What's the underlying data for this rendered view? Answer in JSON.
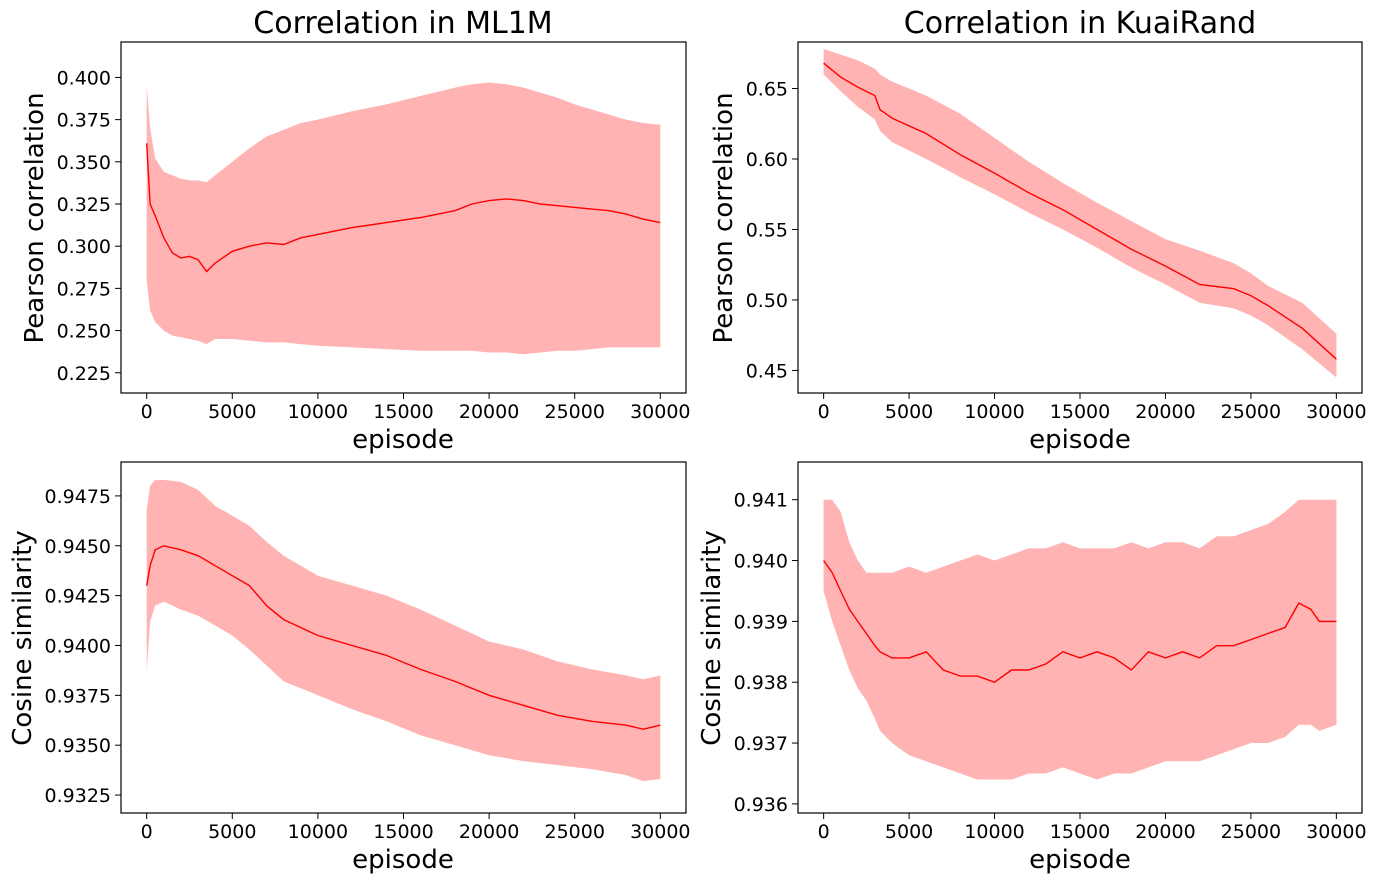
{
  "colors": {
    "line": "#ff0000",
    "band": "#ffb3b3"
  },
  "chart_data": [
    {
      "type": "line",
      "title": "Correlation in ML1M",
      "xlabel": "episode",
      "ylabel": "Pearson correlation",
      "xlim": [
        -1500,
        31500
      ],
      "ylim": [
        0.213,
        0.421
      ],
      "xticks": [
        0,
        5000,
        10000,
        15000,
        20000,
        25000,
        30000
      ],
      "yticks": [
        0.225,
        0.25,
        0.275,
        0.3,
        0.325,
        0.35,
        0.375,
        0.4
      ],
      "xtick_labels": [
        "0",
        "5000",
        "10000",
        "15000",
        "20000",
        "25000",
        "30000"
      ],
      "ytick_labels": [
        "0.225",
        "0.250",
        "0.275",
        "0.300",
        "0.325",
        "0.350",
        "0.375",
        "0.400"
      ],
      "series": [
        {
          "name": "mean",
          "x": [
            0,
            200,
            500,
            1000,
            1500,
            2000,
            2500,
            3000,
            3500,
            4000,
            5000,
            6000,
            7000,
            8000,
            9000,
            10000,
            12000,
            14000,
            16000,
            18000,
            19000,
            20000,
            21000,
            22000,
            23000,
            24000,
            25000,
            26000,
            27000,
            28000,
            29000,
            30000
          ],
          "y": [
            0.361,
            0.325,
            0.318,
            0.305,
            0.296,
            0.293,
            0.294,
            0.292,
            0.285,
            0.29,
            0.297,
            0.3,
            0.302,
            0.301,
            0.305,
            0.307,
            0.311,
            0.314,
            0.317,
            0.321,
            0.325,
            0.327,
            0.328,
            0.327,
            0.325,
            0.324,
            0.323,
            0.322,
            0.321,
            0.319,
            0.316,
            0.314
          ],
          "lower": [
            0.28,
            0.262,
            0.255,
            0.25,
            0.247,
            0.246,
            0.245,
            0.244,
            0.242,
            0.245,
            0.245,
            0.244,
            0.243,
            0.243,
            0.242,
            0.241,
            0.24,
            0.239,
            0.238,
            0.238,
            0.238,
            0.237,
            0.237,
            0.236,
            0.237,
            0.238,
            0.238,
            0.239,
            0.24,
            0.24,
            0.24,
            0.24
          ],
          "upper": [
            0.395,
            0.37,
            0.352,
            0.344,
            0.342,
            0.34,
            0.339,
            0.339,
            0.338,
            0.342,
            0.35,
            0.358,
            0.365,
            0.369,
            0.373,
            0.375,
            0.38,
            0.384,
            0.389,
            0.394,
            0.396,
            0.397,
            0.396,
            0.394,
            0.391,
            0.388,
            0.384,
            0.381,
            0.378,
            0.375,
            0.373,
            0.372
          ]
        }
      ]
    },
    {
      "type": "line",
      "title": "Correlation in KuaiRand",
      "xlabel": "episode",
      "ylabel": "Pearson correlation",
      "xlim": [
        -1500,
        31500
      ],
      "ylim": [
        0.434,
        0.683
      ],
      "xticks": [
        0,
        5000,
        10000,
        15000,
        20000,
        25000,
        30000
      ],
      "yticks": [
        0.45,
        0.5,
        0.55,
        0.6,
        0.65
      ],
      "xtick_labels": [
        "0",
        "5000",
        "10000",
        "15000",
        "20000",
        "25000",
        "30000"
      ],
      "ytick_labels": [
        "0.45",
        "0.50",
        "0.55",
        "0.60",
        "0.65"
      ],
      "series": [
        {
          "name": "mean",
          "x": [
            0,
            1000,
            2000,
            3000,
            3300,
            4000,
            6000,
            8000,
            10000,
            12000,
            14000,
            16000,
            18000,
            20000,
            22000,
            24000,
            25000,
            26000,
            28000,
            30000
          ],
          "y": [
            0.668,
            0.658,
            0.651,
            0.645,
            0.635,
            0.629,
            0.618,
            0.603,
            0.59,
            0.576,
            0.564,
            0.55,
            0.536,
            0.524,
            0.511,
            0.508,
            0.503,
            0.496,
            0.48,
            0.458
          ],
          "lower": [
            0.66,
            0.648,
            0.637,
            0.628,
            0.62,
            0.612,
            0.6,
            0.587,
            0.575,
            0.562,
            0.55,
            0.537,
            0.523,
            0.511,
            0.498,
            0.494,
            0.489,
            0.482,
            0.465,
            0.445
          ],
          "upper": [
            0.678,
            0.674,
            0.67,
            0.664,
            0.66,
            0.655,
            0.645,
            0.632,
            0.615,
            0.598,
            0.583,
            0.569,
            0.556,
            0.543,
            0.535,
            0.526,
            0.519,
            0.51,
            0.498,
            0.476
          ]
        }
      ]
    },
    {
      "type": "line",
      "title": "",
      "xlabel": "episode",
      "ylabel": "Cosine similarity",
      "xlim": [
        -1500,
        31500
      ],
      "ylim": [
        0.9316,
        0.9492
      ],
      "xticks": [
        0,
        5000,
        10000,
        15000,
        20000,
        25000,
        30000
      ],
      "yticks": [
        0.9325,
        0.935,
        0.9375,
        0.94,
        0.9425,
        0.945,
        0.9475
      ],
      "xtick_labels": [
        "0",
        "5000",
        "10000",
        "15000",
        "20000",
        "25000",
        "30000"
      ],
      "ytick_labels": [
        "0.9325",
        "0.9350",
        "0.9375",
        "0.9400",
        "0.9425",
        "0.9450",
        "0.9475"
      ],
      "series": [
        {
          "name": "mean",
          "x": [
            0,
            200,
            500,
            1000,
            2000,
            3000,
            4000,
            5000,
            6000,
            7000,
            8000,
            10000,
            12000,
            14000,
            16000,
            18000,
            20000,
            22000,
            24000,
            26000,
            28000,
            29000,
            30000
          ],
          "y": [
            0.943,
            0.944,
            0.9448,
            0.945,
            0.9448,
            0.9445,
            0.944,
            0.9435,
            0.943,
            0.942,
            0.9413,
            0.9405,
            0.94,
            0.9395,
            0.9388,
            0.9382,
            0.9375,
            0.937,
            0.9365,
            0.9362,
            0.936,
            0.9358,
            0.936
          ],
          "lower": [
            0.9387,
            0.9412,
            0.942,
            0.9422,
            0.9418,
            0.9415,
            0.941,
            0.9405,
            0.9398,
            0.939,
            0.9382,
            0.9375,
            0.9368,
            0.9362,
            0.9355,
            0.935,
            0.9345,
            0.9342,
            0.934,
            0.9338,
            0.9335,
            0.9332,
            0.9333
          ],
          "upper": [
            0.9468,
            0.948,
            0.9483,
            0.9483,
            0.9482,
            0.9478,
            0.947,
            0.9465,
            0.946,
            0.9452,
            0.9445,
            0.9435,
            0.943,
            0.9425,
            0.9418,
            0.941,
            0.9402,
            0.9398,
            0.9392,
            0.9388,
            0.9385,
            0.9383,
            0.9385
          ]
        }
      ]
    },
    {
      "type": "line",
      "title": "",
      "xlabel": "episode",
      "ylabel": "Cosine similarity",
      "xlim": [
        -1500,
        31500
      ],
      "ylim": [
        0.93585,
        0.94162
      ],
      "xticks": [
        0,
        5000,
        10000,
        15000,
        20000,
        25000,
        30000
      ],
      "yticks": [
        0.936,
        0.937,
        0.938,
        0.939,
        0.94,
        0.941
      ],
      "xtick_labels": [
        "0",
        "5000",
        "10000",
        "15000",
        "20000",
        "25000",
        "30000"
      ],
      "ytick_labels": [
        "0.936",
        "0.937",
        "0.938",
        "0.939",
        "0.940",
        "0.941"
      ],
      "series": [
        {
          "name": "mean",
          "x": [
            0,
            500,
            1000,
            1500,
            2000,
            2500,
            3000,
            3300,
            4000,
            5000,
            6000,
            7000,
            8000,
            9000,
            10000,
            11000,
            12000,
            13000,
            14000,
            15000,
            16000,
            17000,
            18000,
            19000,
            20000,
            21000,
            22000,
            23000,
            24000,
            25000,
            26000,
            27000,
            27800,
            28500,
            29000,
            30000
          ],
          "y": [
            0.94,
            0.9398,
            0.9395,
            0.9392,
            0.939,
            0.9388,
            0.9386,
            0.9385,
            0.9384,
            0.9384,
            0.9385,
            0.9382,
            0.9381,
            0.9381,
            0.938,
            0.9382,
            0.9382,
            0.9383,
            0.9385,
            0.9384,
            0.9385,
            0.9384,
            0.9382,
            0.9385,
            0.9384,
            0.9385,
            0.9384,
            0.9386,
            0.9386,
            0.9387,
            0.9388,
            0.9389,
            0.9393,
            0.9392,
            0.939,
            0.939
          ],
          "lower": [
            0.9395,
            0.939,
            0.9386,
            0.9382,
            0.9379,
            0.9377,
            0.9374,
            0.9372,
            0.937,
            0.9368,
            0.9367,
            0.9366,
            0.9365,
            0.9364,
            0.9364,
            0.9364,
            0.9365,
            0.9365,
            0.9366,
            0.9365,
            0.9364,
            0.9365,
            0.9365,
            0.9366,
            0.9367,
            0.9367,
            0.9367,
            0.9368,
            0.9369,
            0.937,
            0.937,
            0.9371,
            0.9373,
            0.9373,
            0.9372,
            0.9373
          ],
          "upper": [
            0.941,
            0.941,
            0.9408,
            0.9403,
            0.94,
            0.9398,
            0.9398,
            0.9398,
            0.9398,
            0.9399,
            0.9398,
            0.9399,
            0.94,
            0.9401,
            0.94,
            0.9401,
            0.9402,
            0.9402,
            0.9403,
            0.9402,
            0.9402,
            0.9402,
            0.9403,
            0.9402,
            0.9403,
            0.9403,
            0.9402,
            0.9404,
            0.9404,
            0.9405,
            0.9406,
            0.9408,
            0.941,
            0.941,
            0.941,
            0.941
          ]
        }
      ]
    }
  ]
}
